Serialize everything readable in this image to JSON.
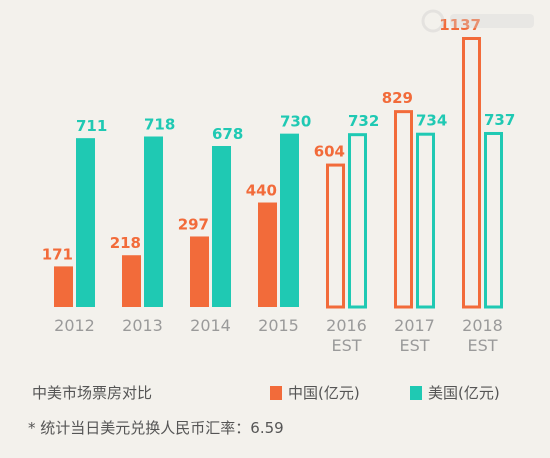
{
  "chart_data": {
    "type": "bar",
    "categories": [
      "2012",
      "2013",
      "2014",
      "2015",
      "2016\nEST",
      "2017\nEST",
      "2018\nEST"
    ],
    "series": [
      {
        "name": "中国(亿元)",
        "values": [
          171,
          218,
          297,
          440,
          604,
          829,
          1137
        ],
        "color": "#f26b3a",
        "estimate_from_index": 4
      },
      {
        "name": "美国(亿元)",
        "values": [
          711,
          718,
          678,
          730,
          732,
          734,
          737
        ],
        "color": "#1fc9b3",
        "estimate_from_index": 4
      }
    ],
    "ylim": [
      0,
      1137
    ],
    "grid": false,
    "legend_position": "bottom",
    "caption": "中美市场票房对比",
    "footnote": "* 统计当日美元兑换人民币汇率：6.59",
    "colors": {
      "china": "#f26b3a",
      "usa": "#1fc9b3",
      "background": "#f3f1ec",
      "tick_text": "#9a9a9a",
      "caption_text": "#555555"
    }
  },
  "watermark_icon": "watermark-logo"
}
